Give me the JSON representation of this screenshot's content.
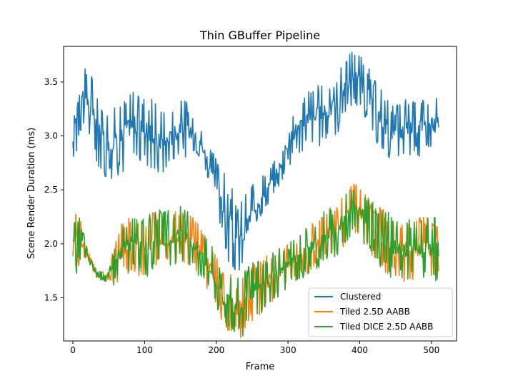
{
  "chart_data": {
    "type": "line",
    "title": "Thin GBuffer Pipeline",
    "xlabel": "Frame",
    "ylabel": "Scene Render Duration (ms)",
    "xlim": [
      -13,
      535
    ],
    "ylim": [
      1.1,
      3.83
    ],
    "xticks": [
      0,
      100,
      200,
      300,
      400,
      500
    ],
    "yticks": [
      1.5,
      2.0,
      2.5,
      3.0,
      3.5
    ],
    "grid": false,
    "legend_position": "lower-right",
    "x_range": [
      0,
      510
    ],
    "series": [
      {
        "name": "Clustered",
        "color": "#1f77b4",
        "base": [
          [
            0,
            2.85
          ],
          [
            5,
            3.3
          ],
          [
            10,
            3.45
          ],
          [
            20,
            3.3
          ],
          [
            30,
            3.15
          ],
          [
            40,
            3.0
          ],
          [
            50,
            2.95
          ],
          [
            60,
            2.95
          ],
          [
            70,
            3.0
          ],
          [
            80,
            3.1
          ],
          [
            90,
            3.1
          ],
          [
            100,
            3.05
          ],
          [
            110,
            3.0
          ],
          [
            120,
            2.95
          ],
          [
            130,
            2.95
          ],
          [
            140,
            3.0
          ],
          [
            150,
            3.1
          ],
          [
            160,
            3.05
          ],
          [
            170,
            3.0
          ],
          [
            180,
            2.9
          ],
          [
            190,
            2.75
          ],
          [
            200,
            2.55
          ],
          [
            210,
            2.35
          ],
          [
            220,
            2.15
          ],
          [
            230,
            2.0
          ],
          [
            240,
            2.1
          ],
          [
            250,
            2.3
          ],
          [
            260,
            2.4
          ],
          [
            270,
            2.5
          ],
          [
            280,
            2.6
          ],
          [
            290,
            2.75
          ],
          [
            300,
            2.95
          ],
          [
            310,
            3.05
          ],
          [
            320,
            3.1
          ],
          [
            330,
            3.2
          ],
          [
            340,
            3.2
          ],
          [
            350,
            3.2
          ],
          [
            360,
            3.25
          ],
          [
            370,
            3.3
          ],
          [
            380,
            3.45
          ],
          [
            390,
            3.55
          ],
          [
            400,
            3.5
          ],
          [
            410,
            3.4
          ],
          [
            420,
            3.25
          ],
          [
            430,
            3.15
          ],
          [
            440,
            3.05
          ],
          [
            450,
            3.0
          ],
          [
            460,
            3.05
          ],
          [
            470,
            3.1
          ],
          [
            480,
            3.1
          ],
          [
            490,
            3.1
          ],
          [
            500,
            3.1
          ],
          [
            508,
            3.1
          ]
        ],
        "spread": [
          [
            0,
            0.1
          ],
          [
            5,
            0.45
          ],
          [
            20,
            0.35
          ],
          [
            60,
            0.35
          ],
          [
            100,
            0.35
          ],
          [
            150,
            0.3
          ],
          [
            180,
            0.15
          ],
          [
            200,
            0.25
          ],
          [
            220,
            0.4
          ],
          [
            240,
            0.35
          ],
          [
            260,
            0.2
          ],
          [
            280,
            0.15
          ],
          [
            300,
            0.25
          ],
          [
            350,
            0.3
          ],
          [
            400,
            0.25
          ],
          [
            440,
            0.3
          ],
          [
            480,
            0.3
          ],
          [
            508,
            0.3
          ]
        ]
      },
      {
        "name": "Tiled 2.5D AABB",
        "color": "#ff7f0e",
        "base": [
          [
            0,
            2.0
          ],
          [
            10,
            2.05
          ],
          [
            20,
            1.9
          ],
          [
            30,
            1.75
          ],
          [
            40,
            1.7
          ],
          [
            50,
            1.7
          ],
          [
            60,
            1.85
          ],
          [
            70,
            1.95
          ],
          [
            80,
            2.0
          ],
          [
            90,
            2.0
          ],
          [
            100,
            1.95
          ],
          [
            110,
            2.0
          ],
          [
            120,
            2.05
          ],
          [
            130,
            2.05
          ],
          [
            140,
            2.05
          ],
          [
            150,
            2.1
          ],
          [
            160,
            2.05
          ],
          [
            170,
            2.0
          ],
          [
            180,
            1.9
          ],
          [
            190,
            1.8
          ],
          [
            200,
            1.65
          ],
          [
            210,
            1.5
          ],
          [
            220,
            1.45
          ],
          [
            230,
            1.4
          ],
          [
            240,
            1.45
          ],
          [
            250,
            1.55
          ],
          [
            260,
            1.6
          ],
          [
            270,
            1.65
          ],
          [
            280,
            1.7
          ],
          [
            290,
            1.75
          ],
          [
            300,
            1.8
          ],
          [
            310,
            1.85
          ],
          [
            320,
            1.9
          ],
          [
            330,
            1.95
          ],
          [
            340,
            2.0
          ],
          [
            350,
            2.05
          ],
          [
            360,
            2.1
          ],
          [
            370,
            2.15
          ],
          [
            380,
            2.25
          ],
          [
            390,
            2.35
          ],
          [
            400,
            2.3
          ],
          [
            410,
            2.2
          ],
          [
            420,
            2.1
          ],
          [
            430,
            2.05
          ],
          [
            440,
            2.0
          ],
          [
            450,
            1.95
          ],
          [
            460,
            1.95
          ],
          [
            470,
            1.95
          ],
          [
            480,
            1.95
          ],
          [
            490,
            1.95
          ],
          [
            500,
            1.95
          ],
          [
            508,
            1.95
          ]
        ],
        "spread": [
          [
            0,
            0.15
          ],
          [
            5,
            0.3
          ],
          [
            20,
            0.05
          ],
          [
            50,
            0.05
          ],
          [
            60,
            0.25
          ],
          [
            100,
            0.3
          ],
          [
            150,
            0.25
          ],
          [
            200,
            0.25
          ],
          [
            240,
            0.3
          ],
          [
            300,
            0.2
          ],
          [
            350,
            0.25
          ],
          [
            400,
            0.25
          ],
          [
            440,
            0.3
          ],
          [
            508,
            0.3
          ]
        ]
      },
      {
        "name": "Tiled DICE 2.5D AABB",
        "color": "#2ca02c",
        "base": [
          [
            0,
            2.0
          ],
          [
            10,
            2.05
          ],
          [
            20,
            1.9
          ],
          [
            30,
            1.75
          ],
          [
            40,
            1.7
          ],
          [
            50,
            1.7
          ],
          [
            60,
            1.85
          ],
          [
            70,
            1.95
          ],
          [
            80,
            2.0
          ],
          [
            90,
            2.0
          ],
          [
            100,
            1.95
          ],
          [
            110,
            2.0
          ],
          [
            120,
            2.05
          ],
          [
            130,
            2.05
          ],
          [
            140,
            2.05
          ],
          [
            150,
            2.1
          ],
          [
            160,
            2.05
          ],
          [
            170,
            2.0
          ],
          [
            180,
            1.9
          ],
          [
            190,
            1.8
          ],
          [
            200,
            1.65
          ],
          [
            210,
            1.5
          ],
          [
            220,
            1.45
          ],
          [
            230,
            1.4
          ],
          [
            240,
            1.45
          ],
          [
            250,
            1.55
          ],
          [
            260,
            1.6
          ],
          [
            270,
            1.65
          ],
          [
            280,
            1.7
          ],
          [
            290,
            1.75
          ],
          [
            300,
            1.8
          ],
          [
            310,
            1.85
          ],
          [
            320,
            1.9
          ],
          [
            330,
            1.95
          ],
          [
            340,
            2.0
          ],
          [
            350,
            2.05
          ],
          [
            360,
            2.1
          ],
          [
            370,
            2.15
          ],
          [
            380,
            2.25
          ],
          [
            390,
            2.35
          ],
          [
            400,
            2.3
          ],
          [
            410,
            2.2
          ],
          [
            420,
            2.1
          ],
          [
            430,
            2.05
          ],
          [
            440,
            2.0
          ],
          [
            450,
            1.95
          ],
          [
            460,
            1.95
          ],
          [
            470,
            1.95
          ],
          [
            480,
            1.95
          ],
          [
            490,
            1.95
          ],
          [
            500,
            1.95
          ],
          [
            508,
            1.95
          ]
        ],
        "spread": [
          [
            0,
            0.15
          ],
          [
            5,
            0.3
          ],
          [
            20,
            0.05
          ],
          [
            50,
            0.05
          ],
          [
            60,
            0.25
          ],
          [
            100,
            0.3
          ],
          [
            150,
            0.25
          ],
          [
            200,
            0.25
          ],
          [
            240,
            0.3
          ],
          [
            300,
            0.2
          ],
          [
            350,
            0.25
          ],
          [
            400,
            0.25
          ],
          [
            440,
            0.3
          ],
          [
            508,
            0.3
          ]
        ]
      }
    ]
  }
}
